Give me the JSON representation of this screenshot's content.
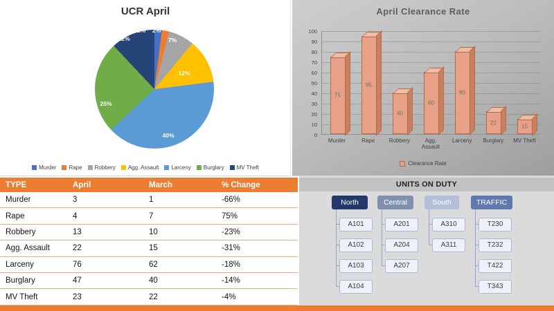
{
  "chart_data": [
    {
      "type": "pie",
      "title": "UCR April",
      "categories": [
        "Murder",
        "Rape",
        "Robbery",
        "Agg. Assault",
        "Larceny",
        "Burglary",
        "MV Theft"
      ],
      "values": [
        2,
        2,
        7,
        12,
        40,
        25,
        12
      ],
      "labels": [
        "2%",
        "2%",
        "7%",
        "12%",
        "40%",
        "25%",
        "12%"
      ],
      "colors": [
        "#4472C4",
        "#ED7D31",
        "#A5A5A5",
        "#FFC000",
        "#5B9BD5",
        "#70AD47",
        "#264478"
      ],
      "legend_position": "bottom"
    },
    {
      "type": "bar",
      "title": "April Clearance Rate",
      "categories": [
        "Murder",
        "Rape",
        "Robbery",
        "Agg. Assault",
        "Larceny",
        "Burglary",
        "MV Theft"
      ],
      "values": [
        75,
        95,
        40,
        60,
        80,
        22,
        15
      ],
      "series_name": "Clearance Rate",
      "ylim": [
        0,
        100
      ],
      "yticks": [
        0,
        10,
        20,
        30,
        40,
        50,
        60,
        70,
        80,
        90,
        100
      ],
      "grid": true,
      "legend_position": "bottom",
      "bar_color": "#E8A087",
      "bar_color_light": "#F1BCA4",
      "bar_color_dark": "#C8805F",
      "bar_border": "#B06A4E"
    }
  ],
  "table": {
    "headers": [
      "TYPE",
      "April",
      "March",
      "% Change"
    ],
    "header_color": "#ED7D31",
    "rows": [
      [
        "Murder",
        "3",
        "1",
        "-66%"
      ],
      [
        "Rape",
        "4",
        "7",
        "75%"
      ],
      [
        "Robbery",
        "13",
        "10",
        "-23%"
      ],
      [
        "Agg. Assault",
        "22",
        "15",
        "-31%"
      ],
      [
        "Larceny",
        "76",
        "62",
        "-18%"
      ],
      [
        "Burglary",
        "47",
        "40",
        "-14%"
      ],
      [
        "MV Theft",
        "23",
        "22",
        "-4%"
      ]
    ]
  },
  "units": {
    "title": "UNITS ON DUTY",
    "groups": [
      {
        "name": "North",
        "color": "#24396B",
        "units": [
          "A101",
          "A102",
          "A103",
          "A104"
        ]
      },
      {
        "name": "Central",
        "color": "#8091B0",
        "units": [
          "A201",
          "A204",
          "A207"
        ]
      },
      {
        "name": "South",
        "color": "#B3BFD6",
        "units": [
          "A310",
          "A311"
        ]
      },
      {
        "name": "TRAFFIC",
        "color": "#5F78AE",
        "units": [
          "T230",
          "T232",
          "T422",
          "T343"
        ]
      }
    ]
  },
  "accent_bar_color": "#ED7D31"
}
